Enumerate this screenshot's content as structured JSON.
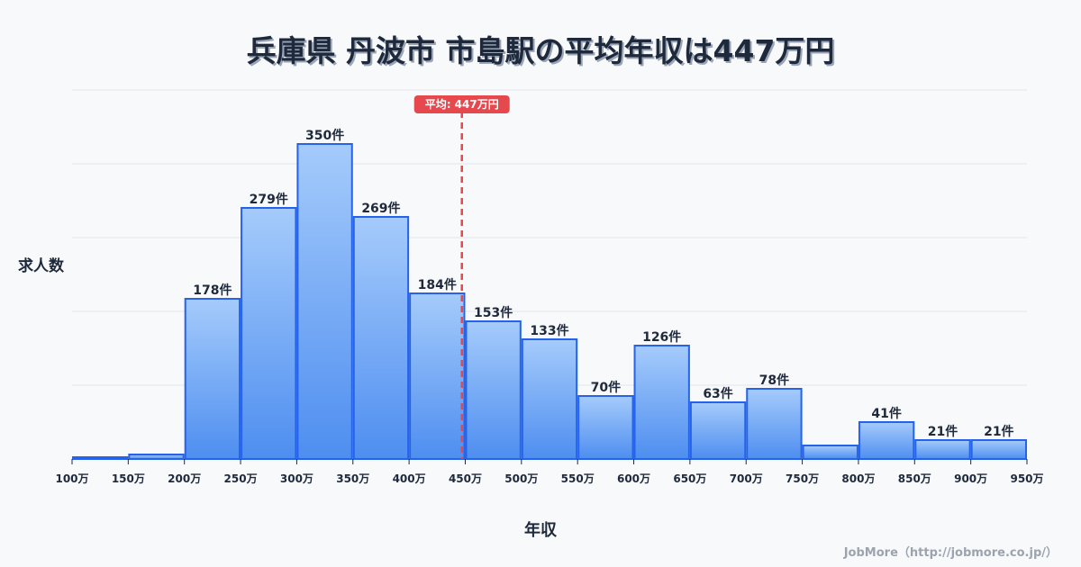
{
  "title": "兵庫県 丹波市 市島駅の平均年収は447万円",
  "y_axis_label": "求人数",
  "x_axis_label": "年収",
  "credit": "JobMore（http://jobmore.co.jp/）",
  "average_label": "平均: 447万円",
  "colors": {
    "bar_top": "#a5cbfb",
    "bar_bottom": "#4e8ef0",
    "bar_stroke": "#2563eb",
    "avg_line": "#e5484d",
    "grid": "#e2e5ec"
  },
  "chart_data": {
    "type": "bar",
    "title": "兵庫県 丹波市 市島駅の平均年収は447万円",
    "xlabel": "年収",
    "ylabel": "求人数",
    "x_ticks": [
      "100万",
      "150万",
      "200万",
      "250万",
      "300万",
      "350万",
      "400万",
      "450万",
      "500万",
      "550万",
      "600万",
      "650万",
      "700万",
      "750万",
      "800万",
      "850万",
      "900万",
      "950万"
    ],
    "categories": [
      "100-150万",
      "150-200万",
      "200-250万",
      "250-300万",
      "300-350万",
      "350-400万",
      "400-450万",
      "450-500万",
      "500-550万",
      "550-600万",
      "600-650万",
      "650-700万",
      "700-750万",
      "750-800万",
      "800-850万",
      "850-900万",
      "900-950万"
    ],
    "values": [
      2,
      5,
      178,
      279,
      350,
      269,
      184,
      153,
      133,
      70,
      126,
      63,
      78,
      15,
      41,
      21,
      21
    ],
    "value_labels": [
      "",
      "",
      "178件",
      "279件",
      "350件",
      "269件",
      "184件",
      "153件",
      "133件",
      "70件",
      "126件",
      "63件",
      "78件",
      "",
      "41件",
      "21件",
      "21件"
    ],
    "average": 447,
    "annotation": "平均: 447万円",
    "ylim": [
      0,
      410
    ],
    "grid": true
  }
}
